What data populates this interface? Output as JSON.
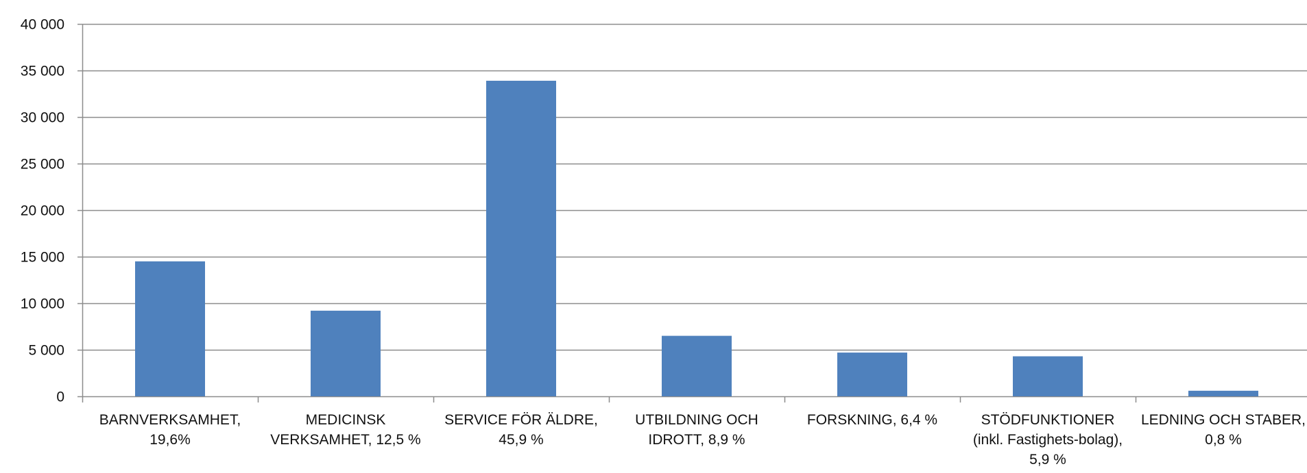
{
  "chart_data": {
    "type": "bar",
    "title": "",
    "xlabel": "",
    "ylabel": "",
    "ylim": [
      0,
      40000
    ],
    "y_ticks": [
      0,
      5000,
      10000,
      15000,
      20000,
      25000,
      30000,
      35000,
      40000
    ],
    "y_tick_labels": [
      "0",
      "5 000",
      "10 000",
      "15 000",
      "20 000",
      "25 000",
      "30 000",
      "35 000",
      "40 000"
    ],
    "grid": "horizontal",
    "legend": "none",
    "bar_color": "#4F81BD",
    "categories": [
      [
        "BARNVERKSAMHET,",
        "19,6%"
      ],
      [
        "MEDICINSK",
        "VERKSAMHET, 12,5 %"
      ],
      [
        "SERVICE FÖR ÄLDRE,",
        "45,9 %"
      ],
      [
        "UTBILDNING OCH",
        "IDROTT, 8,9 %"
      ],
      [
        "FORSKNING, 6,4 %"
      ],
      [
        "STÖDFUNKTIONER",
        "(inkl. Fastighets-bolag),",
        "5,9 %"
      ],
      [
        "LEDNING OCH STABER,",
        "0,8 %"
      ]
    ],
    "values": [
      14500,
      9200,
      33900,
      6500,
      4700,
      4300,
      600
    ]
  }
}
